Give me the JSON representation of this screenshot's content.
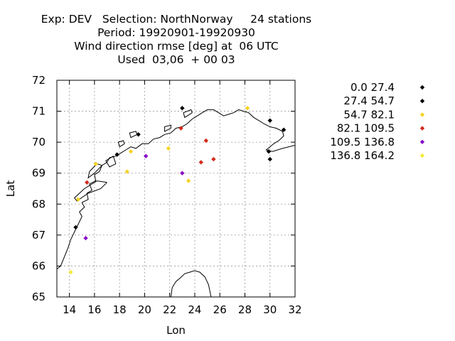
{
  "title": {
    "line1": "Exp: DEV   Selection: NorthNorway     24 stations",
    "line2": "Period: 19920901-19920930",
    "line3": "Wind direction rmse [deg] at  06 UTC",
    "line4": "Used  03,06  + 00 03"
  },
  "chart_data": {
    "type": "scatter",
    "xlabel": "Lon",
    "ylabel": "Lat",
    "xlim": [
      13,
      32
    ],
    "ylim": [
      65,
      72
    ],
    "xticks": [
      14,
      16,
      18,
      20,
      22,
      24,
      26,
      28,
      30,
      32
    ],
    "yticks": [
      65,
      66,
      67,
      68,
      69,
      70,
      71,
      72
    ],
    "grid": true,
    "legend_placement": "right",
    "classes": [
      {
        "label": "0.0 27.4",
        "color": "#000000"
      },
      {
        "label": "27.4 54.7",
        "color": "#000000"
      },
      {
        "label": "54.7 82.1",
        "color": "#f5d327"
      },
      {
        "label": "82.1 109.5",
        "color": "#d42a1c"
      },
      {
        "label": "109.5 136.8",
        "color": "#8a10c8"
      },
      {
        "label": "136.8 164.2",
        "color": "#f5e83a"
      }
    ],
    "points": [
      {
        "lon": 23.0,
        "lat": 71.1,
        "cls": 0
      },
      {
        "lon": 19.5,
        "lat": 70.25,
        "cls": 0
      },
      {
        "lon": 17.8,
        "lat": 69.6,
        "cls": 0
      },
      {
        "lon": 14.5,
        "lat": 67.25,
        "cls": 0
      },
      {
        "lon": 30.0,
        "lat": 70.7,
        "cls": 1
      },
      {
        "lon": 31.1,
        "lat": 70.4,
        "cls": 1
      },
      {
        "lon": 29.9,
        "lat": 69.7,
        "cls": 1
      },
      {
        "lon": 30.0,
        "lat": 69.45,
        "cls": 1
      },
      {
        "lon": 28.2,
        "lat": 71.1,
        "cls": 2
      },
      {
        "lon": 16.1,
        "lat": 69.3,
        "cls": 2
      },
      {
        "lon": 18.6,
        "lat": 69.05,
        "cls": 2
      },
      {
        "lon": 18.9,
        "lat": 69.7,
        "cls": 2
      },
      {
        "lon": 21.9,
        "lat": 69.8,
        "cls": 2
      },
      {
        "lon": 23.5,
        "lat": 68.75,
        "cls": 2
      },
      {
        "lon": 14.7,
        "lat": 68.15,
        "cls": 2
      },
      {
        "lon": 22.9,
        "lat": 70.45,
        "cls": 3
      },
      {
        "lon": 24.9,
        "lat": 70.05,
        "cls": 3
      },
      {
        "lon": 24.5,
        "lat": 69.35,
        "cls": 3
      },
      {
        "lon": 25.5,
        "lat": 69.45,
        "cls": 3
      },
      {
        "lon": 15.4,
        "lat": 68.7,
        "cls": 3
      },
      {
        "lon": 20.1,
        "lat": 69.55,
        "cls": 4
      },
      {
        "lon": 23.0,
        "lat": 69.0,
        "cls": 4
      },
      {
        "lon": 15.3,
        "lat": 66.9,
        "cls": 4
      },
      {
        "lon": 14.1,
        "lat": 65.8,
        "cls": 5
      }
    ],
    "coastline": [
      [
        [
          13.0,
          65.9
        ],
        [
          13.3,
          66.0
        ],
        [
          13.6,
          66.3
        ],
        [
          13.9,
          66.6
        ],
        [
          14.1,
          66.85
        ],
        [
          14.4,
          67.1
        ],
        [
          14.7,
          67.35
        ],
        [
          15.0,
          67.6
        ],
        [
          14.8,
          67.75
        ],
        [
          15.2,
          67.9
        ],
        [
          15.0,
          68.05
        ],
        [
          15.5,
          68.15
        ],
        [
          15.4,
          68.35
        ],
        [
          15.8,
          68.45
        ],
        [
          15.6,
          68.65
        ],
        [
          16.1,
          68.75
        ],
        [
          16.0,
          68.95
        ],
        [
          16.4,
          69.05
        ],
        [
          16.6,
          69.25
        ],
        [
          17.0,
          69.35
        ],
        [
          17.2,
          69.5
        ],
        [
          17.7,
          69.55
        ],
        [
          18.1,
          69.65
        ],
        [
          18.5,
          69.75
        ],
        [
          18.9,
          69.85
        ],
        [
          19.3,
          69.8
        ],
        [
          19.8,
          69.95
        ],
        [
          20.3,
          69.95
        ],
        [
          20.7,
          70.1
        ],
        [
          21.2,
          70.15
        ],
        [
          21.6,
          70.25
        ],
        [
          22.1,
          70.3
        ],
        [
          22.5,
          70.45
        ],
        [
          23.0,
          70.5
        ],
        [
          23.4,
          70.6
        ],
        [
          23.8,
          70.75
        ],
        [
          24.2,
          70.85
        ],
        [
          24.6,
          70.95
        ],
        [
          25.0,
          71.05
        ],
        [
          25.5,
          71.05
        ],
        [
          25.9,
          70.95
        ],
        [
          26.3,
          70.85
        ],
        [
          26.7,
          70.9
        ],
        [
          27.1,
          70.95
        ],
        [
          27.5,
          71.05
        ],
        [
          27.9,
          71.0
        ],
        [
          28.3,
          70.95
        ],
        [
          28.7,
          70.8
        ],
        [
          29.1,
          70.7
        ],
        [
          29.5,
          70.6
        ],
        [
          30.0,
          70.5
        ],
        [
          30.5,
          70.45
        ],
        [
          31.0,
          70.35
        ],
        [
          31.1,
          70.2
        ],
        [
          30.7,
          70.05
        ],
        [
          30.3,
          69.95
        ],
        [
          30.0,
          69.85
        ],
        [
          29.7,
          69.75
        ],
        [
          30.2,
          69.7
        ],
        [
          31.0,
          69.8
        ],
        [
          32.0,
          69.9
        ]
      ],
      [
        [
          22.1,
          65.0
        ],
        [
          22.2,
          65.3
        ],
        [
          22.5,
          65.5
        ],
        [
          22.8,
          65.6
        ],
        [
          23.2,
          65.75
        ],
        [
          23.6,
          65.8
        ],
        [
          24.0,
          65.85
        ],
        [
          24.4,
          65.8
        ],
        [
          24.8,
          65.65
        ],
        [
          25.1,
          65.4
        ],
        [
          25.3,
          65.0
        ]
      ]
    ],
    "islands": [
      [
        [
          17.0,
          68.7
        ],
        [
          16.5,
          68.5
        ],
        [
          15.5,
          68.35
        ],
        [
          14.6,
          68.1
        ],
        [
          14.4,
          68.2
        ],
        [
          15.2,
          68.5
        ],
        [
          16.2,
          68.75
        ],
        [
          17.0,
          68.7
        ]
      ],
      [
        [
          16.6,
          69.25
        ],
        [
          16.0,
          69.0
        ],
        [
          15.5,
          68.85
        ],
        [
          15.6,
          69.05
        ],
        [
          16.2,
          69.3
        ],
        [
          16.6,
          69.25
        ]
      ],
      [
        [
          17.7,
          69.3
        ],
        [
          17.2,
          69.2
        ],
        [
          16.9,
          69.4
        ],
        [
          17.5,
          69.55
        ],
        [
          17.7,
          69.3
        ]
      ],
      [
        [
          18.4,
          69.95
        ],
        [
          18.0,
          69.85
        ],
        [
          17.9,
          70.0
        ],
        [
          18.3,
          70.05
        ],
        [
          18.4,
          69.95
        ]
      ],
      [
        [
          19.4,
          70.25
        ],
        [
          18.9,
          70.15
        ],
        [
          18.8,
          70.3
        ],
        [
          19.3,
          70.35
        ],
        [
          19.4,
          70.25
        ]
      ],
      [
        [
          22.1,
          70.45
        ],
        [
          21.6,
          70.35
        ],
        [
          21.6,
          70.5
        ],
        [
          22.1,
          70.55
        ],
        [
          22.1,
          70.45
        ]
      ],
      [
        [
          23.8,
          70.95
        ],
        [
          23.2,
          70.8
        ],
        [
          23.1,
          70.95
        ],
        [
          23.7,
          71.05
        ],
        [
          23.8,
          70.95
        ]
      ]
    ]
  }
}
